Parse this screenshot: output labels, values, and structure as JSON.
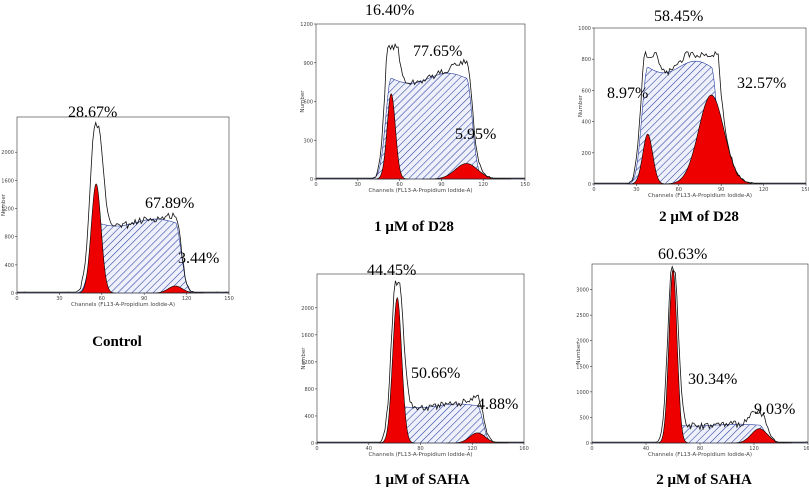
{
  "figure": "Cell cycle DNA content histograms (propidium iodide flow cytometry)",
  "chart_data": [
    {
      "id": "control",
      "type": "area",
      "title": "Control",
      "xlabel": "Channels (FL13-A-Propidium Iodide-A)",
      "ylabel": "Number",
      "xlim": [
        0,
        150
      ],
      "ylim": [
        0,
        2500
      ],
      "xticks": [
        0,
        30,
        60,
        90,
        120,
        150
      ],
      "yticks": [
        0,
        400,
        800,
        1200,
        1600,
        2000
      ],
      "peaks": {
        "g1_center": 56,
        "g2_center": 112
      },
      "percentages": {
        "g0_g1": "28.67%",
        "s": "67.89%",
        "g2_m": "3.44%"
      }
    },
    {
      "id": "d28-1um",
      "type": "area",
      "title": "1 μM of D28",
      "xlabel": "Channels (FL13-A-Propidium Iodide-A)",
      "ylabel": "Number",
      "xlim": [
        0,
        150
      ],
      "ylim": [
        0,
        1200
      ],
      "xticks": [
        0,
        30,
        60,
        90,
        120,
        150
      ],
      "yticks": [
        0,
        300,
        600,
        900,
        1200
      ],
      "peaks": {
        "g1_center": 54,
        "g2_center": 108
      },
      "percentages": {
        "g0_g1": "16.40%",
        "s": "77.65%",
        "g2_m": "5.95%"
      }
    },
    {
      "id": "d28-2um",
      "type": "area",
      "title": "2 μM of D28",
      "xlabel": "Channels (FL13-A-Propidium Iodide-A)",
      "ylabel": "Number",
      "xlim": [
        0,
        150
      ],
      "ylim": [
        0,
        1000
      ],
      "xticks": [
        0,
        30,
        60,
        90,
        120,
        150
      ],
      "yticks": [
        0,
        200,
        400,
        600,
        800,
        1000
      ],
      "peaks": {
        "g1_center": 38,
        "g2_center": 83
      },
      "percentages": {
        "g0_g1": "8.97%",
        "s": "58.45%",
        "g2_m": "32.57%"
      }
    },
    {
      "id": "saha-1um",
      "type": "area",
      "title": "1 μM of SAHA",
      "xlabel": "Channels (FL13-A-Propidium Iodide-A)",
      "ylabel": "Number",
      "xlim": [
        0,
        160
      ],
      "ylim": [
        0,
        2500
      ],
      "xticks": [
        0,
        40,
        80,
        120,
        160
      ],
      "yticks": [
        0,
        400,
        800,
        1200,
        1600,
        2000
      ],
      "peaks": {
        "g1_center": 62,
        "g2_center": 124
      },
      "percentages": {
        "g0_g1": "44.45%",
        "s": "50.66%",
        "g2_m": "4.88%"
      }
    },
    {
      "id": "saha-2um",
      "type": "area",
      "title": "2 μM of SAHA",
      "xlabel": "Channels (FL13-A-Propidium Iodide-A)",
      "ylabel": "Number",
      "xlim": [
        0,
        160
      ],
      "ylim": [
        0,
        3500
      ],
      "xticks": [
        0,
        40,
        80,
        120,
        160
      ],
      "yticks": [
        0,
        500,
        1000,
        1500,
        2000,
        2500,
        3000
      ],
      "peaks": {
        "g1_center": 60,
        "g2_center": 124
      },
      "percentages": {
        "g0_g1": "60.63%",
        "s": "30.34%",
        "g2_m": "9.03%"
      }
    }
  ],
  "colors": {
    "peak_fill": "#ee0000",
    "s_phase_hatch": "#2a3f9e",
    "outline": "#000000"
  }
}
